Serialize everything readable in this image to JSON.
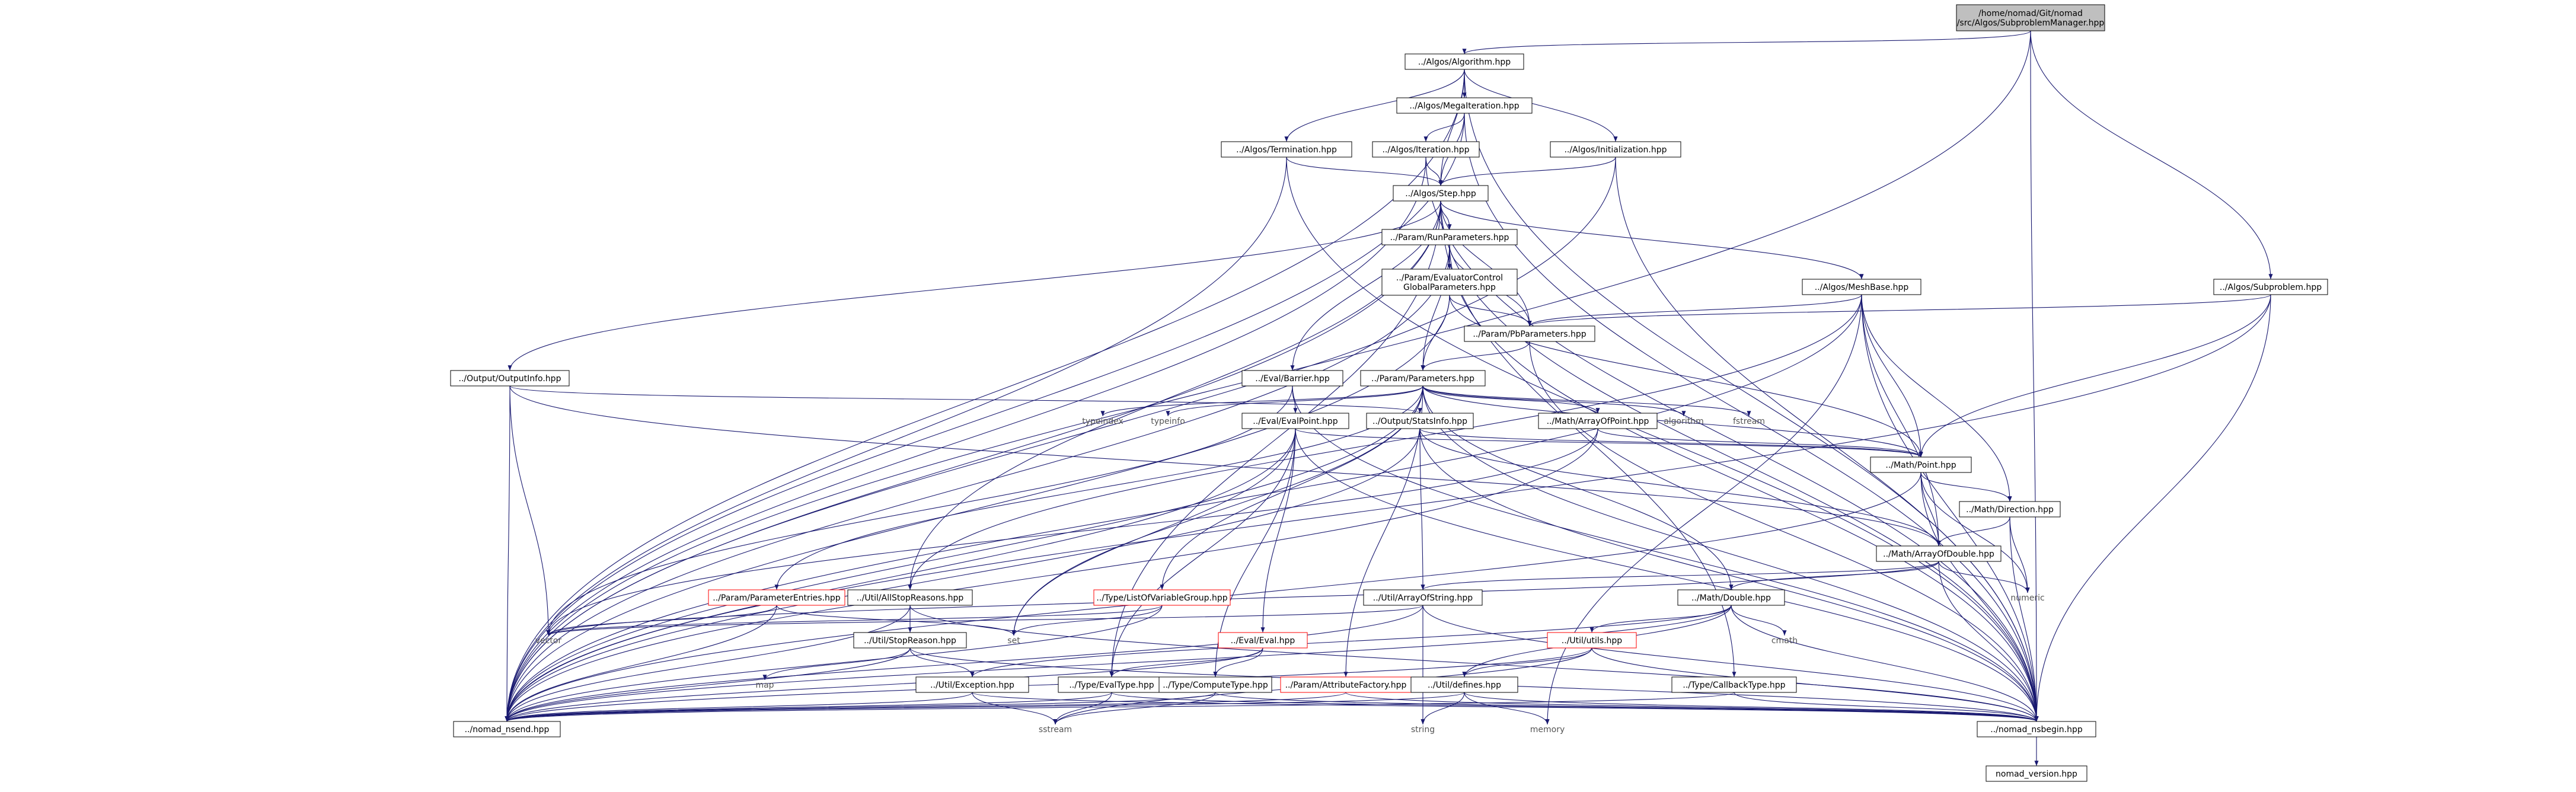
{
  "diagram": {
    "colors": {
      "edge": "#191970",
      "node_border": "#000000",
      "red_border": "#ff0000",
      "plain_text": "#555555",
      "root_fill": "#bfbfbf",
      "node_fill": "#ffffff"
    },
    "nodes": [
      {
        "id": "root",
        "label": "/home/nomad/Git/nomad\n/src/Algos/SubproblemManager.hpp",
        "kind": "root"
      },
      {
        "id": "algorithm_hpp",
        "label": "../Algos/Algorithm.hpp",
        "kind": "box"
      },
      {
        "id": "megaiteration",
        "label": "../Algos/MegaIteration.hpp",
        "kind": "box"
      },
      {
        "id": "termination",
        "label": "../Algos/Termination.hpp",
        "kind": "box"
      },
      {
        "id": "iteration",
        "label": "../Algos/Iteration.hpp",
        "kind": "box"
      },
      {
        "id": "initialization",
        "label": "../Algos/Initialization.hpp",
        "kind": "box"
      },
      {
        "id": "step",
        "label": "../Algos/Step.hpp",
        "kind": "box"
      },
      {
        "id": "runparams",
        "label": "../Param/RunParameters.hpp",
        "kind": "box"
      },
      {
        "id": "evalcontrol",
        "label": "../Param/EvaluatorControl\nGlobalParameters.hpp",
        "kind": "box"
      },
      {
        "id": "meshbase",
        "label": "../Algos/MeshBase.hpp",
        "kind": "box"
      },
      {
        "id": "subproblem",
        "label": "../Algos/Subproblem.hpp",
        "kind": "box"
      },
      {
        "id": "pbparams",
        "label": "../Param/PbParameters.hpp",
        "kind": "box"
      },
      {
        "id": "outputinfo",
        "label": "../Output/OutputInfo.hpp",
        "kind": "box"
      },
      {
        "id": "barrier",
        "label": "../Eval/Barrier.hpp",
        "kind": "box"
      },
      {
        "id": "parameters",
        "label": "../Param/Parameters.hpp",
        "kind": "box"
      },
      {
        "id": "typeindex",
        "label": "typeindex",
        "kind": "plain"
      },
      {
        "id": "typeinfo",
        "label": "typeinfo",
        "kind": "plain"
      },
      {
        "id": "evalpoint",
        "label": "../Eval/EvalPoint.hpp",
        "kind": "box"
      },
      {
        "id": "statsinfo",
        "label": "../Output/StatsInfo.hpp",
        "kind": "box"
      },
      {
        "id": "arrayofpoint",
        "label": "../Math/ArrayOfPoint.hpp",
        "kind": "box"
      },
      {
        "id": "algorithm",
        "label": "algorithm",
        "kind": "plain"
      },
      {
        "id": "fstream",
        "label": "fstream",
        "kind": "plain"
      },
      {
        "id": "point",
        "label": "../Math/Point.hpp",
        "kind": "box"
      },
      {
        "id": "direction",
        "label": "../Math/Direction.hpp",
        "kind": "box"
      },
      {
        "id": "arrayofdouble",
        "label": "../Math/ArrayOfDouble.hpp",
        "kind": "box"
      },
      {
        "id": "numeric",
        "label": "numeric",
        "kind": "plain"
      },
      {
        "id": "arrayofstring",
        "label": "../Util/ArrayOfString.hpp",
        "kind": "box"
      },
      {
        "id": "double",
        "label": "../Math/Double.hpp",
        "kind": "box"
      },
      {
        "id": "paramentries",
        "label": "../Param/ParameterEntries.hpp",
        "kind": "red"
      },
      {
        "id": "allstopreasons",
        "label": "../Util/AllStopReasons.hpp",
        "kind": "box"
      },
      {
        "id": "listofvar",
        "label": "../Type/ListOfVariableGroup.hpp",
        "kind": "red"
      },
      {
        "id": "vector",
        "label": "vector",
        "kind": "plain"
      },
      {
        "id": "set",
        "label": "set",
        "kind": "plain"
      },
      {
        "id": "stopreason",
        "label": "../Util/StopReason.hpp",
        "kind": "box"
      },
      {
        "id": "eval",
        "label": "../Eval/Eval.hpp",
        "kind": "red"
      },
      {
        "id": "utils",
        "label": "../Util/utils.hpp",
        "kind": "red"
      },
      {
        "id": "cmath",
        "label": "cmath",
        "kind": "plain"
      },
      {
        "id": "map",
        "label": "map",
        "kind": "plain"
      },
      {
        "id": "exception",
        "label": "../Util/Exception.hpp",
        "kind": "box"
      },
      {
        "id": "evaltype",
        "label": "../Type/EvalType.hpp",
        "kind": "box"
      },
      {
        "id": "computetype",
        "label": "../Type/ComputeType.hpp",
        "kind": "box"
      },
      {
        "id": "attrfactory",
        "label": "../Param/AttributeFactory.hpp",
        "kind": "red"
      },
      {
        "id": "defines",
        "label": "../Util/defines.hpp",
        "kind": "box"
      },
      {
        "id": "callbacktype",
        "label": "../Type/CallbackType.hpp",
        "kind": "box"
      },
      {
        "id": "nomad_nsend",
        "label": "../nomad_nsend.hpp",
        "kind": "box"
      },
      {
        "id": "sstream",
        "label": "sstream",
        "kind": "plain"
      },
      {
        "id": "string",
        "label": "string",
        "kind": "plain"
      },
      {
        "id": "memory",
        "label": "memory",
        "kind": "plain"
      },
      {
        "id": "nomad_nsbegin",
        "label": "../nomad_nsbegin.hpp",
        "kind": "box"
      },
      {
        "id": "nomad_version",
        "label": "nomad_version.hpp",
        "kind": "box"
      }
    ],
    "edges": [
      [
        "root",
        "algorithm_hpp"
      ],
      [
        "root",
        "subproblem"
      ],
      [
        "root",
        "nomad_nsend"
      ],
      [
        "root",
        "nomad_nsbegin"
      ],
      [
        "algorithm_hpp",
        "megaiteration"
      ],
      [
        "algorithm_hpp",
        "termination"
      ],
      [
        "algorithm_hpp",
        "initialization"
      ],
      [
        "algorithm_hpp",
        "step"
      ],
      [
        "algorithm_hpp",
        "nomad_nsend"
      ],
      [
        "algorithm_hpp",
        "nomad_nsbegin"
      ],
      [
        "megaiteration",
        "iteration"
      ],
      [
        "megaiteration",
        "step"
      ],
      [
        "megaiteration",
        "nomad_nsend"
      ],
      [
        "megaiteration",
        "nomad_nsbegin"
      ],
      [
        "termination",
        "step"
      ],
      [
        "termination",
        "nomad_nsend"
      ],
      [
        "termination",
        "nomad_nsbegin"
      ],
      [
        "iteration",
        "step"
      ],
      [
        "iteration",
        "nomad_nsend"
      ],
      [
        "iteration",
        "nomad_nsbegin"
      ],
      [
        "initialization",
        "step"
      ],
      [
        "initialization",
        "nomad_nsend"
      ],
      [
        "initialization",
        "nomad_nsbegin"
      ],
      [
        "step",
        "runparams"
      ],
      [
        "step",
        "meshbase"
      ],
      [
        "step",
        "pbparams"
      ],
      [
        "step",
        "outputinfo"
      ],
      [
        "step",
        "barrier"
      ],
      [
        "step",
        "allstopreasons"
      ],
      [
        "step",
        "evaltype"
      ],
      [
        "step",
        "callbacktype"
      ],
      [
        "step",
        "nomad_nsend"
      ],
      [
        "step",
        "nomad_nsbegin"
      ],
      [
        "runparams",
        "evalcontrol"
      ],
      [
        "runparams",
        "pbparams"
      ],
      [
        "runparams",
        "parameters"
      ],
      [
        "runparams",
        "nomad_nsend"
      ],
      [
        "runparams",
        "nomad_nsbegin"
      ],
      [
        "evalcontrol",
        "pbparams"
      ],
      [
        "evalcontrol",
        "parameters"
      ],
      [
        "evalcontrol",
        "point"
      ],
      [
        "evalcontrol",
        "nomad_nsend"
      ],
      [
        "meshbase",
        "pbparams"
      ],
      [
        "meshbase",
        "point"
      ],
      [
        "meshbase",
        "direction"
      ],
      [
        "meshbase",
        "arrayofdouble"
      ],
      [
        "meshbase",
        "allstopreasons"
      ],
      [
        "meshbase",
        "memory"
      ],
      [
        "meshbase",
        "nomad_nsend"
      ],
      [
        "meshbase",
        "nomad_nsbegin"
      ],
      [
        "subproblem",
        "pbparams"
      ],
      [
        "subproblem",
        "point"
      ],
      [
        "subproblem",
        "nomad_nsend"
      ],
      [
        "subproblem",
        "nomad_nsbegin"
      ],
      [
        "pbparams",
        "parameters"
      ],
      [
        "pbparams",
        "nomad_nsbegin"
      ],
      [
        "outputinfo",
        "vector"
      ],
      [
        "outputinfo",
        "arrayofdouble"
      ],
      [
        "outputinfo",
        "statsinfo"
      ],
      [
        "outputinfo",
        "nomad_nsend"
      ],
      [
        "barrier",
        "evalpoint"
      ],
      [
        "barrier",
        "vector"
      ],
      [
        "barrier",
        "nomad_nsbegin"
      ],
      [
        "parameters",
        "typeindex"
      ],
      [
        "parameters",
        "typeinfo"
      ],
      [
        "parameters",
        "algorithm"
      ],
      [
        "parameters",
        "fstream"
      ],
      [
        "parameters",
        "arrayofpoint"
      ],
      [
        "parameters",
        "point"
      ],
      [
        "parameters",
        "double"
      ],
      [
        "parameters",
        "paramentries"
      ],
      [
        "parameters",
        "listofvar"
      ],
      [
        "parameters",
        "attrfactory"
      ],
      [
        "parameters",
        "set"
      ],
      [
        "parameters",
        "nomad_nsend"
      ],
      [
        "parameters",
        "nomad_nsbegin"
      ],
      [
        "evalpoint",
        "point"
      ],
      [
        "evalpoint",
        "eval"
      ],
      [
        "evalpoint",
        "set"
      ],
      [
        "evalpoint",
        "evaltype"
      ],
      [
        "evalpoint",
        "computetype"
      ],
      [
        "evalpoint",
        "nomad_nsend"
      ],
      [
        "evalpoint",
        "nomad_nsbegin"
      ],
      [
        "statsinfo",
        "point"
      ],
      [
        "statsinfo",
        "arrayofstring"
      ],
      [
        "statsinfo",
        "arrayofdouble"
      ],
      [
        "statsinfo",
        "nomad_nsend"
      ],
      [
        "statsinfo",
        "nomad_nsbegin"
      ],
      [
        "arrayofpoint",
        "point"
      ],
      [
        "arrayofpoint",
        "vector"
      ],
      [
        "arrayofpoint",
        "nomad_nsend"
      ],
      [
        "point",
        "direction"
      ],
      [
        "point",
        "arrayofdouble"
      ],
      [
        "point",
        "numeric"
      ],
      [
        "point",
        "nomad_nsend"
      ],
      [
        "point",
        "nomad_nsbegin"
      ],
      [
        "direction",
        "arrayofdouble"
      ],
      [
        "direction",
        "numeric"
      ],
      [
        "direction",
        "nomad_nsbegin"
      ],
      [
        "arrayofdouble",
        "double"
      ],
      [
        "arrayofdouble",
        "arrayofstring"
      ],
      [
        "arrayofdouble",
        "numeric"
      ],
      [
        "arrayofdouble",
        "vector"
      ],
      [
        "arrayofdouble",
        "nomad_nsbegin"
      ],
      [
        "arrayofstring",
        "string"
      ],
      [
        "arrayofstring",
        "vector"
      ],
      [
        "arrayofstring",
        "nomad_nsend"
      ],
      [
        "arrayofstring",
        "nomad_nsbegin"
      ],
      [
        "double",
        "utils"
      ],
      [
        "double",
        "cmath"
      ],
      [
        "double",
        "exception"
      ],
      [
        "double",
        "defines"
      ],
      [
        "double",
        "nomad_nsend"
      ],
      [
        "double",
        "nomad_nsbegin"
      ],
      [
        "paramentries",
        "set"
      ],
      [
        "paramentries",
        "vector"
      ],
      [
        "paramentries",
        "nomad_nsend"
      ],
      [
        "allstopreasons",
        "stopreason"
      ],
      [
        "allstopreasons",
        "nomad_nsend"
      ],
      [
        "allstopreasons",
        "nomad_nsbegin"
      ],
      [
        "listofvar",
        "set"
      ],
      [
        "listofvar",
        "vector"
      ],
      [
        "listofvar",
        "nomad_nsend"
      ],
      [
        "stopreason",
        "map"
      ],
      [
        "stopreason",
        "exception"
      ],
      [
        "stopreason",
        "nomad_nsend"
      ],
      [
        "stopreason",
        "nomad_nsbegin"
      ],
      [
        "eval",
        "evaltype"
      ],
      [
        "eval",
        "computetype"
      ],
      [
        "eval",
        "nomad_nsend"
      ],
      [
        "utils",
        "defines"
      ],
      [
        "utils",
        "sstream"
      ],
      [
        "utils",
        "nomad_nsend"
      ],
      [
        "utils",
        "nomad_nsbegin"
      ],
      [
        "exception",
        "sstream"
      ],
      [
        "exception",
        "nomad_nsend"
      ],
      [
        "exception",
        "nomad_nsbegin"
      ],
      [
        "evaltype",
        "sstream"
      ],
      [
        "evaltype",
        "nomad_nsend"
      ],
      [
        "evaltype",
        "nomad_nsbegin"
      ],
      [
        "computetype",
        "sstream"
      ],
      [
        "computetype",
        "nomad_nsend"
      ],
      [
        "computetype",
        "nomad_nsbegin"
      ],
      [
        "attrfactory",
        "nomad_nsend"
      ],
      [
        "attrfactory",
        "nomad_nsbegin"
      ],
      [
        "defines",
        "string"
      ],
      [
        "defines",
        "memory"
      ],
      [
        "defines",
        "nomad_nsend"
      ],
      [
        "defines",
        "nomad_nsbegin"
      ],
      [
        "callbacktype",
        "nomad_nsend"
      ],
      [
        "callbacktype",
        "nomad_nsbegin"
      ],
      [
        "nomad_nsbegin",
        "nomad_version"
      ]
    ]
  }
}
